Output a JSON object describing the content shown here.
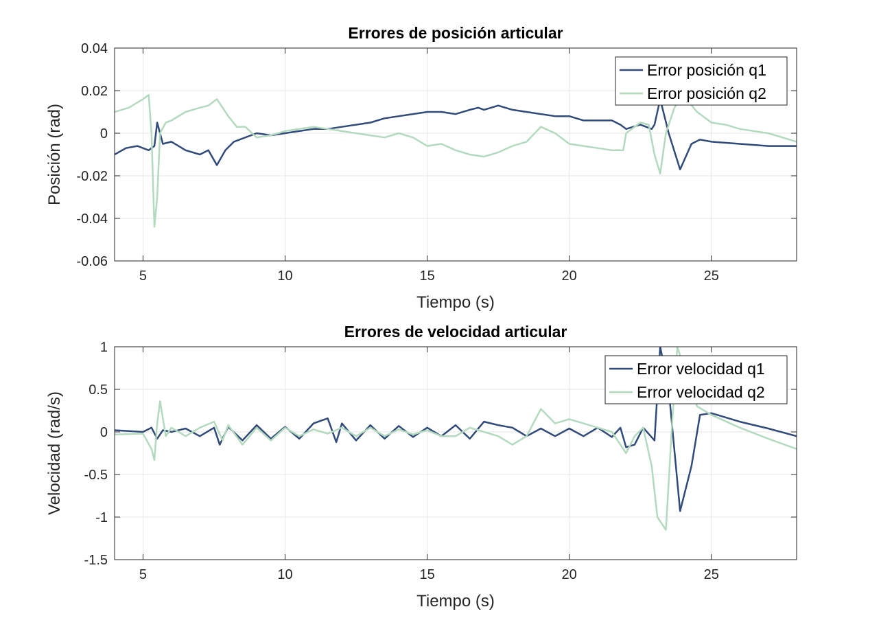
{
  "colors": {
    "q1": "#304a7a",
    "q2": "#b3d9bf",
    "grid": "#e6e6e6",
    "axis": "#262626"
  },
  "chart_data": [
    {
      "type": "line",
      "title": "Errores de posición articular",
      "xlabel": "Tiempo (s)",
      "ylabel": "Posición (rad)",
      "xlim": [
        4,
        28
      ],
      "ylim": [
        -0.06,
        0.04
      ],
      "xticks": [
        5,
        10,
        15,
        20,
        25
      ],
      "xtick_labels": [
        "5",
        "10",
        "15",
        "20",
        "25"
      ],
      "yticks": [
        -0.06,
        -0.04,
        -0.02,
        0,
        0.02,
        0.04
      ],
      "ytick_labels": [
        "-0.06",
        "-0.04",
        "-0.02",
        "0",
        "0.02",
        "0.04"
      ],
      "grid": true,
      "legend_position": "top-right",
      "series": [
        {
          "name": "Error posición q1",
          "color": "#304a7a",
          "x": [
            4.0,
            4.4,
            4.8,
            5.2,
            5.4,
            5.5,
            5.7,
            6.0,
            6.5,
            7.0,
            7.3,
            7.6,
            7.9,
            8.2,
            8.6,
            9.0,
            9.5,
            10.0,
            10.5,
            11.0,
            11.5,
            12.0,
            12.5,
            13.0,
            13.5,
            14.0,
            14.5,
            15.0,
            15.5,
            16.0,
            16.5,
            16.8,
            17.0,
            17.5,
            18.0,
            18.5,
            19.0,
            19.5,
            20.0,
            20.5,
            21.0,
            21.5,
            21.8,
            22.0,
            22.5,
            22.9,
            23.0,
            23.2,
            23.5,
            23.9,
            24.3,
            24.6,
            25.0,
            26.0,
            27.0,
            28.0
          ],
          "y": [
            -0.01,
            -0.007,
            -0.006,
            -0.008,
            -0.006,
            0.005,
            -0.005,
            -0.004,
            -0.008,
            -0.01,
            -0.008,
            -0.015,
            -0.008,
            -0.004,
            -0.002,
            0.0,
            -0.001,
            0.0,
            0.001,
            0.002,
            0.002,
            0.003,
            0.004,
            0.005,
            0.007,
            0.008,
            0.009,
            0.01,
            0.01,
            0.009,
            0.011,
            0.012,
            0.011,
            0.013,
            0.011,
            0.01,
            0.009,
            0.008,
            0.008,
            0.006,
            0.006,
            0.006,
            0.004,
            0.002,
            0.004,
            0.002,
            0.004,
            0.016,
            0.0,
            -0.017,
            -0.005,
            -0.003,
            -0.004,
            -0.005,
            -0.006,
            -0.006
          ]
        },
        {
          "name": "Error posición q2",
          "color": "#b3d9bf",
          "x": [
            4.0,
            4.5,
            5.0,
            5.2,
            5.3,
            5.4,
            5.5,
            5.6,
            5.8,
            6.0,
            6.5,
            7.0,
            7.3,
            7.6,
            7.8,
            8.0,
            8.3,
            8.6,
            9.0,
            9.5,
            10.0,
            10.5,
            11.0,
            11.5,
            12.0,
            12.5,
            13.0,
            13.5,
            14.0,
            14.5,
            15.0,
            15.5,
            16.0,
            16.5,
            17.0,
            17.5,
            18.0,
            18.5,
            19.0,
            19.5,
            20.0,
            20.5,
            21.0,
            21.5,
            21.9,
            22.0,
            22.5,
            22.8,
            23.0,
            23.2,
            23.4,
            23.7,
            24.0,
            24.5,
            25.0,
            25.5,
            26.0,
            27.0,
            28.0
          ],
          "y": [
            0.01,
            0.012,
            0.016,
            0.018,
            0.0,
            -0.044,
            -0.03,
            0.0,
            0.005,
            0.006,
            0.01,
            0.012,
            0.013,
            0.016,
            0.012,
            0.008,
            0.003,
            0.003,
            -0.002,
            -0.001,
            0.001,
            0.002,
            0.003,
            0.002,
            0.001,
            0.0,
            -0.001,
            -0.002,
            0.0,
            -0.002,
            -0.006,
            -0.005,
            -0.008,
            -0.01,
            -0.011,
            -0.009,
            -0.006,
            -0.004,
            0.003,
            0.0,
            -0.005,
            -0.006,
            -0.007,
            -0.008,
            -0.008,
            0.0,
            0.005,
            0.004,
            -0.01,
            -0.019,
            0.0,
            0.012,
            0.018,
            0.01,
            0.005,
            0.004,
            0.002,
            0.0,
            -0.004
          ]
        }
      ]
    },
    {
      "type": "line",
      "title": "Errores de velocidad articular",
      "xlabel": "Tiempo (s)",
      "ylabel": "Velocidad (rad/s)",
      "xlim": [
        4,
        28
      ],
      "ylim": [
        -1.5,
        1
      ],
      "xticks": [
        5,
        10,
        15,
        20,
        25
      ],
      "xtick_labels": [
        "5",
        "10",
        "15",
        "20",
        "25"
      ],
      "yticks": [
        -1.5,
        -1,
        -0.5,
        0,
        0.5,
        1
      ],
      "ytick_labels": [
        "-1.5",
        "-1",
        "-0.5",
        "0",
        "0.5",
        "1"
      ],
      "grid": true,
      "legend_position": "top-right",
      "series": [
        {
          "name": "Error velocidad q1",
          "color": "#304a7a",
          "x": [
            4.0,
            5.0,
            5.3,
            5.5,
            5.7,
            6.0,
            6.5,
            7.0,
            7.5,
            7.7,
            8.0,
            8.5,
            9.0,
            9.5,
            10.0,
            10.5,
            11.0,
            11.5,
            11.8,
            12.0,
            12.5,
            13.0,
            13.5,
            14.0,
            14.5,
            15.0,
            15.5,
            16.0,
            16.5,
            17.0,
            17.5,
            18.0,
            18.5,
            19.0,
            19.5,
            20.0,
            20.5,
            21.0,
            21.5,
            21.8,
            22.0,
            22.3,
            22.6,
            23.0,
            23.2,
            23.5,
            23.9,
            24.3,
            24.6,
            25.0,
            26.0,
            27.0,
            28.0
          ],
          "y": [
            0.02,
            0.0,
            0.05,
            -0.08,
            0.02,
            0.0,
            0.04,
            -0.05,
            0.05,
            -0.15,
            0.06,
            -0.1,
            0.08,
            -0.08,
            0.06,
            -0.08,
            0.1,
            0.16,
            -0.12,
            0.1,
            -0.1,
            0.08,
            -0.08,
            0.07,
            -0.06,
            0.05,
            -0.05,
            0.08,
            -0.08,
            0.12,
            0.08,
            0.05,
            -0.05,
            0.04,
            -0.05,
            0.04,
            -0.05,
            0.05,
            -0.06,
            0.05,
            -0.18,
            -0.15,
            0.05,
            -0.1,
            1.0,
            0.5,
            -0.93,
            -0.4,
            0.2,
            0.22,
            0.12,
            0.04,
            -0.05
          ]
        },
        {
          "name": "Error velocidad q2",
          "color": "#b3d9bf",
          "x": [
            4.0,
            5.0,
            5.3,
            5.4,
            5.5,
            5.6,
            5.8,
            6.0,
            6.5,
            7.0,
            7.5,
            7.8,
            8.0,
            8.5,
            9.0,
            9.5,
            10.0,
            10.5,
            11.0,
            11.5,
            12.0,
            12.5,
            13.0,
            13.5,
            14.0,
            14.5,
            15.0,
            15.5,
            16.0,
            16.5,
            17.0,
            17.5,
            18.0,
            18.5,
            19.0,
            19.5,
            20.0,
            20.5,
            21.0,
            21.5,
            22.0,
            22.3,
            22.6,
            22.9,
            23.1,
            23.4,
            23.6,
            23.8,
            24.0,
            24.5,
            25.0,
            26.0,
            27.0,
            28.0
          ],
          "y": [
            -0.03,
            -0.02,
            -0.2,
            -0.33,
            0.1,
            0.36,
            -0.05,
            0.05,
            -0.05,
            0.05,
            0.12,
            -0.1,
            0.08,
            -0.15,
            0.05,
            -0.1,
            0.05,
            -0.05,
            0.03,
            -0.02,
            0.05,
            -0.05,
            0.05,
            -0.05,
            0.03,
            -0.03,
            0.02,
            -0.05,
            -0.05,
            0.05,
            0.0,
            -0.05,
            -0.15,
            -0.05,
            0.27,
            0.1,
            0.15,
            0.1,
            0.05,
            0.0,
            -0.25,
            -0.05,
            0.05,
            -0.4,
            -1.0,
            -1.15,
            0.0,
            1.0,
            0.8,
            0.3,
            0.2,
            0.05,
            -0.08,
            -0.2
          ]
        }
      ]
    }
  ]
}
